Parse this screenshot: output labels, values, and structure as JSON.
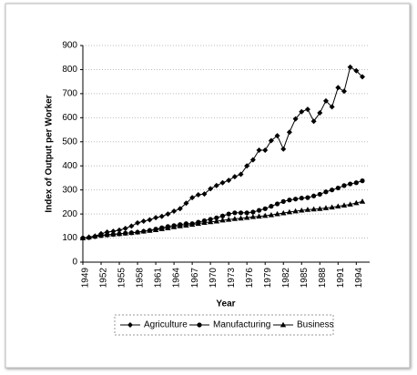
{
  "chart_data": {
    "type": "line",
    "y_label": "Index of Output per Worker",
    "x_label": "Year",
    "x": [
      1949,
      1950,
      1951,
      1952,
      1953,
      1954,
      1955,
      1956,
      1957,
      1958,
      1959,
      1960,
      1961,
      1962,
      1963,
      1964,
      1965,
      1966,
      1967,
      1968,
      1969,
      1970,
      1971,
      1972,
      1973,
      1974,
      1975,
      1976,
      1977,
      1978,
      1979,
      1980,
      1981,
      1982,
      1983,
      1984,
      1985,
      1986,
      1987,
      1988,
      1989,
      1990,
      1991,
      1992,
      1993,
      1994,
      1995
    ],
    "series": [
      {
        "name": "Agriculture",
        "color": "#000000",
        "marker": "diamond",
        "values": [
          100,
          103,
          108,
          118,
          125,
          128,
          133,
          140,
          150,
          163,
          170,
          176,
          185,
          190,
          200,
          212,
          222,
          245,
          268,
          280,
          283,
          305,
          318,
          330,
          340,
          355,
          365,
          400,
          425,
          465,
          465,
          505,
          525,
          470,
          540,
          595,
          625,
          635,
          585,
          620,
          670,
          645,
          725,
          710,
          810,
          795,
          770
        ]
      },
      {
        "name": "Manufacturing",
        "color": "#000000",
        "marker": "circle",
        "values": [
          100,
          102,
          106,
          110,
          113,
          115,
          117,
          120,
          122,
          124,
          128,
          132,
          137,
          143,
          148,
          152,
          156,
          160,
          160,
          166,
          172,
          178,
          184,
          192,
          200,
          205,
          205,
          205,
          208,
          215,
          222,
          232,
          242,
          252,
          258,
          262,
          266,
          268,
          275,
          282,
          292,
          300,
          308,
          318,
          325,
          330,
          338
        ]
      },
      {
        "name": "Business",
        "color": "#000000",
        "marker": "triangle",
        "values": [
          100,
          104,
          108,
          112,
          114,
          116,
          118,
          120,
          122,
          125,
          128,
          131,
          134,
          138,
          142,
          146,
          150,
          153,
          156,
          160,
          164,
          167,
          170,
          174,
          177,
          180,
          182,
          185,
          188,
          190,
          193,
          196,
          200,
          204,
          208,
          212,
          215,
          218,
          220,
          222,
          225,
          228,
          232,
          236,
          240,
          246,
          252
        ]
      }
    ],
    "xlim": [
      1949,
      1995
    ],
    "xticks": [
      1949,
      1952,
      1955,
      1958,
      1961,
      1964,
      1967,
      1970,
      1973,
      1976,
      1979,
      1982,
      1985,
      1988,
      1991,
      1994
    ],
    "ylim": [
      0,
      900
    ],
    "yticks": [
      0,
      100,
      200,
      300,
      400,
      500,
      600,
      700,
      800,
      900
    ],
    "grid": true,
    "legend": "bottom"
  }
}
